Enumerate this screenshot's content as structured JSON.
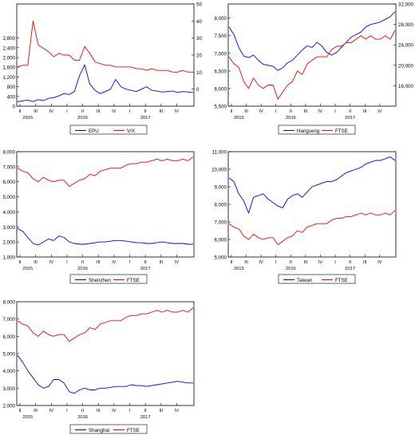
{
  "colors": {
    "blue": "#0000ff",
    "red": "#ff0000",
    "frame": "#000000",
    "bg": "#ffffff"
  },
  "chart_data": [
    {
      "type": "line",
      "quarters": [
        "II",
        "III",
        "IV",
        "I",
        "II",
        "III",
        "IV",
        "I",
        "II",
        "III",
        "IV"
      ],
      "years": [
        "2015",
        "2016",
        "2017"
      ],
      "left_axis": {
        "ticks": [
          "0",
          "400",
          "800",
          "1,200",
          "1,600",
          "2,000",
          "2,400",
          "2,800"
        ],
        "ylim": [
          0,
          4200
        ]
      },
      "right_axis": {
        "ticks": [
          "0",
          "10",
          "20",
          "30",
          "40",
          "50"
        ],
        "ylim": [
          -10,
          50
        ]
      },
      "series": [
        {
          "name": "EPU",
          "color": "#0000ff",
          "axis": "left",
          "values": [
            180,
            220,
            250,
            190,
            270,
            230,
            320,
            350,
            420,
            520,
            480,
            600,
            1250,
            1700,
            900,
            650,
            520,
            600,
            700,
            1100,
            800,
            700,
            650,
            600,
            700,
            800,
            650,
            620,
            580,
            600,
            620,
            560,
            600,
            580,
            560
          ]
        },
        {
          "name": "VIX",
          "color": "#ff0000",
          "axis": "right",
          "values": [
            13,
            14,
            14,
            40,
            26,
            24,
            22,
            19,
            21,
            20,
            20,
            17,
            17,
            25,
            21,
            16,
            15,
            14,
            14,
            13,
            13,
            13,
            13,
            12,
            12,
            11,
            12,
            11,
            11,
            11,
            10,
            10,
            11,
            10,
            10
          ]
        }
      ]
    },
    {
      "type": "line",
      "quarters": [
        "II",
        "III",
        "IV",
        "I",
        "II",
        "III",
        "IV",
        "I",
        "II",
        "III",
        "IV"
      ],
      "years": [
        "2015",
        "2016",
        "2017"
      ],
      "left_axis": {
        "ticks": [
          "5,500",
          "6,000",
          "6,500",
          "7,000",
          "7,500",
          "8,000"
        ],
        "ylim": [
          5500,
          8400
        ]
      },
      "right_axis": {
        "ticks": [
          "16,000",
          "20,000",
          "24,000",
          "28,000",
          "32,000"
        ],
        "ylim": [
          12000,
          32000
        ]
      },
      "series": [
        {
          "name": "Hangseng",
          "color": "#0000ff",
          "axis": "right",
          "values": [
            27500,
            26000,
            23500,
            21800,
            21500,
            22000,
            21000,
            20200,
            20000,
            19800,
            19000,
            19500,
            20500,
            21000,
            22000,
            23000,
            23800,
            23500,
            24500,
            23800,
            22500,
            22000,
            22500,
            23500,
            24500,
            25500,
            26000,
            26500,
            27500,
            28000,
            28200,
            28500,
            29000,
            29500,
            30500
          ]
        },
        {
          "name": "FTSE",
          "color": "#ff0000",
          "axis": "left",
          "values": [
            6900,
            6700,
            6600,
            6200,
            6000,
            6300,
            6100,
            6000,
            6100,
            6100,
            5700,
            5900,
            6100,
            6200,
            6500,
            6400,
            6700,
            6800,
            6900,
            6900,
            6900,
            7100,
            7200,
            7200,
            7300,
            7300,
            7400,
            7500,
            7400,
            7500,
            7400,
            7400,
            7500,
            7400,
            7650
          ]
        }
      ]
    },
    {
      "type": "line",
      "quarters": [
        "II",
        "III",
        "IV",
        "I",
        "II",
        "III",
        "IV",
        "I",
        "II",
        "III",
        "IV"
      ],
      "years": [
        "2015",
        "2016",
        "2017"
      ],
      "left_axis": {
        "ticks": [
          "1,000",
          "2,000",
          "3,000",
          "4,000",
          "5,000",
          "6,000",
          "7,000",
          "8,000"
        ],
        "ylim": [
          1000,
          8000
        ]
      },
      "series": [
        {
          "name": "Shenzhen",
          "color": "#0000ff",
          "values": [
            2900,
            2700,
            2300,
            1900,
            1800,
            2000,
            2200,
            2100,
            2400,
            2300,
            2000,
            1900,
            1850,
            1850,
            1900,
            1950,
            2000,
            2000,
            2050,
            2100,
            2100,
            2050,
            2000,
            1950,
            1950,
            1900,
            1900,
            1950,
            2000,
            1950,
            1900,
            1900,
            1900,
            1850,
            1850
          ]
        },
        {
          "name": "FTSE",
          "color": "#ff0000",
          "values": [
            6900,
            6700,
            6600,
            6200,
            6000,
            6300,
            6100,
            6000,
            6100,
            6100,
            5700,
            5900,
            6100,
            6200,
            6500,
            6400,
            6700,
            6800,
            6900,
            6900,
            6900,
            7100,
            7200,
            7200,
            7300,
            7300,
            7400,
            7500,
            7400,
            7500,
            7400,
            7400,
            7500,
            7400,
            7650
          ]
        }
      ]
    },
    {
      "type": "line",
      "quarters": [
        "II",
        "III",
        "IV",
        "I",
        "II",
        "III",
        "IV",
        "I",
        "II",
        "III",
        "IV"
      ],
      "years": [
        "2015",
        "2016",
        "2017"
      ],
      "left_axis": {
        "ticks": [
          "5,000",
          "6,000",
          "7,000",
          "8,000",
          "9,000",
          "10,000",
          "11,000"
        ],
        "ylim": [
          5000,
          11000
        ]
      },
      "series": [
        {
          "name": "Taiwan",
          "color": "#0000ff",
          "values": [
            9500,
            9300,
            8600,
            8200,
            7500,
            8400,
            8500,
            8600,
            8300,
            8100,
            7900,
            7800,
            8300,
            8500,
            8600,
            8400,
            8700,
            9000,
            9100,
            9200,
            9300,
            9300,
            9400,
            9600,
            9800,
            9900,
            10000,
            10100,
            10300,
            10400,
            10500,
            10500,
            10600,
            10700,
            10500
          ]
        },
        {
          "name": "FTSE",
          "color": "#ff0000",
          "values": [
            6900,
            6700,
            6600,
            6200,
            6000,
            6300,
            6100,
            6000,
            6100,
            6100,
            5700,
            5900,
            6100,
            6200,
            6500,
            6400,
            6700,
            6800,
            6900,
            6900,
            6900,
            7100,
            7200,
            7200,
            7300,
            7300,
            7400,
            7500,
            7400,
            7500,
            7400,
            7400,
            7500,
            7400,
            7650
          ]
        }
      ]
    },
    {
      "type": "line",
      "quarters": [
        "II",
        "III",
        "IV",
        "I",
        "II",
        "III",
        "IV",
        "I",
        "II",
        "III",
        "IV"
      ],
      "years": [
        "2015",
        "2016",
        "2017"
      ],
      "left_axis": {
        "ticks": [
          "2,000",
          "3,000",
          "4,000",
          "5,000",
          "6,000",
          "7,000",
          "8,000"
        ],
        "ylim": [
          2000,
          8000
        ]
      },
      "series": [
        {
          "name": "Shanghai",
          "color": "#0000ff",
          "values": [
            4900,
            4500,
            4000,
            3600,
            3200,
            3000,
            3100,
            3500,
            3500,
            3300,
            2800,
            2700,
            2900,
            3000,
            2900,
            2900,
            3000,
            3000,
            3050,
            3100,
            3100,
            3100,
            3200,
            3150,
            3150,
            3100,
            3150,
            3200,
            3250,
            3300,
            3350,
            3400,
            3350,
            3300,
            3300
          ]
        },
        {
          "name": "FTSE",
          "color": "#ff0000",
          "values": [
            6900,
            6700,
            6600,
            6200,
            6000,
            6300,
            6100,
            6000,
            6100,
            6100,
            5700,
            5900,
            6100,
            6200,
            6500,
            6400,
            6700,
            6800,
            6900,
            6900,
            6900,
            7100,
            7200,
            7200,
            7300,
            7300,
            7400,
            7500,
            7400,
            7500,
            7400,
            7400,
            7500,
            7400,
            7650
          ]
        }
      ]
    }
  ]
}
